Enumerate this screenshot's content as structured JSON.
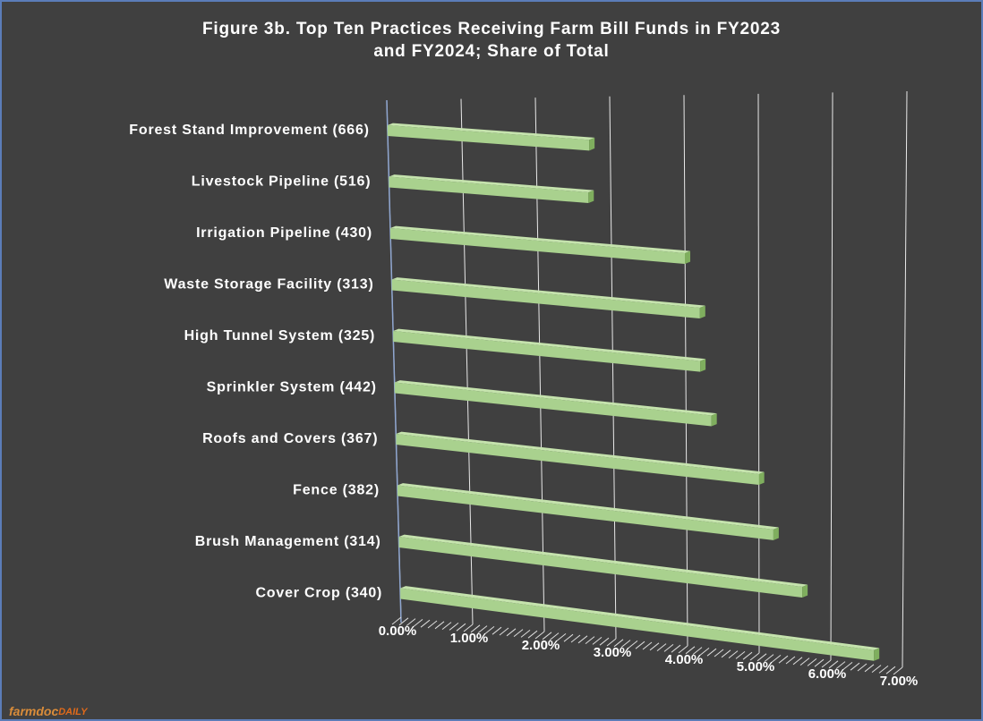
{
  "chart_data": {
    "type": "bar3d_horizontal",
    "title": [
      "Figure 3b. Top Ten Practices Receiving Farm Bill Funds in FY2023",
      "and FY2024; Share of Total"
    ],
    "categories": [
      "Forest Stand Improvement (666)",
      "Livestock Pipeline (516)",
      "Irrigation Pipeline (430)",
      "Waste Storage Facility (313)",
      "High Tunnel System (325)",
      "Sprinkler System (442)",
      "Roofs and Covers (367)",
      "Fence (382)",
      "Brush Management (314)",
      "Cover Crop (340)"
    ],
    "values": [
      2.72,
      2.7,
      4.0,
      4.2,
      4.2,
      4.35,
      5.0,
      5.2,
      5.6,
      6.6
    ],
    "color": "#a9d18e",
    "xlim": [
      0,
      7
    ],
    "xticks": [
      {
        "value": 0,
        "label": "0.00%"
      },
      {
        "value": 1,
        "label": "1.00%"
      },
      {
        "value": 2,
        "label": "2.00%"
      },
      {
        "value": 3,
        "label": "3.00%"
      },
      {
        "value": 4,
        "label": "4.00%"
      },
      {
        "value": 5,
        "label": "5.00%"
      },
      {
        "value": 6,
        "label": "6.00%"
      },
      {
        "value": 7,
        "label": "7.00%"
      }
    ],
    "grid": true
  },
  "logo": {
    "main": "farmdoc",
    "accent": "DAILY"
  }
}
